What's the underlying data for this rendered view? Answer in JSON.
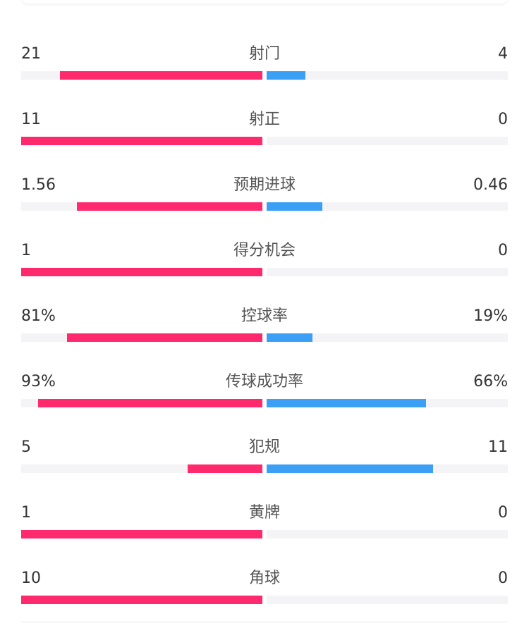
{
  "colors": {
    "home": "#ff2a6d",
    "away": "#3a9ff5",
    "track": "#f4f4f6"
  },
  "stats": [
    {
      "label": "射门",
      "home": "21",
      "away": "4",
      "home_fill": 0.84,
      "away_fill": 0.16
    },
    {
      "label": "射正",
      "home": "11",
      "away": "0",
      "home_fill": 1.0,
      "away_fill": 0
    },
    {
      "label": "预期进球",
      "home": "1.56",
      "away": "0.46",
      "home_fill": 0.77,
      "away_fill": 0.23
    },
    {
      "label": "得分机会",
      "home": "1",
      "away": "0",
      "home_fill": 1.0,
      "away_fill": 0
    },
    {
      "label": "控球率",
      "home": "81%",
      "away": "19%",
      "home_fill": 0.81,
      "away_fill": 0.19
    },
    {
      "label": "传球成功率",
      "home": "93%",
      "away": "66%",
      "home_fill": 0.93,
      "away_fill": 0.66
    },
    {
      "label": "犯规",
      "home": "5",
      "away": "11",
      "home_fill": 0.31,
      "away_fill": 0.69
    },
    {
      "label": "黄牌",
      "home": "1",
      "away": "0",
      "home_fill": 1.0,
      "away_fill": 0
    },
    {
      "label": "角球",
      "home": "10",
      "away": "0",
      "home_fill": 1.0,
      "away_fill": 0
    }
  ]
}
